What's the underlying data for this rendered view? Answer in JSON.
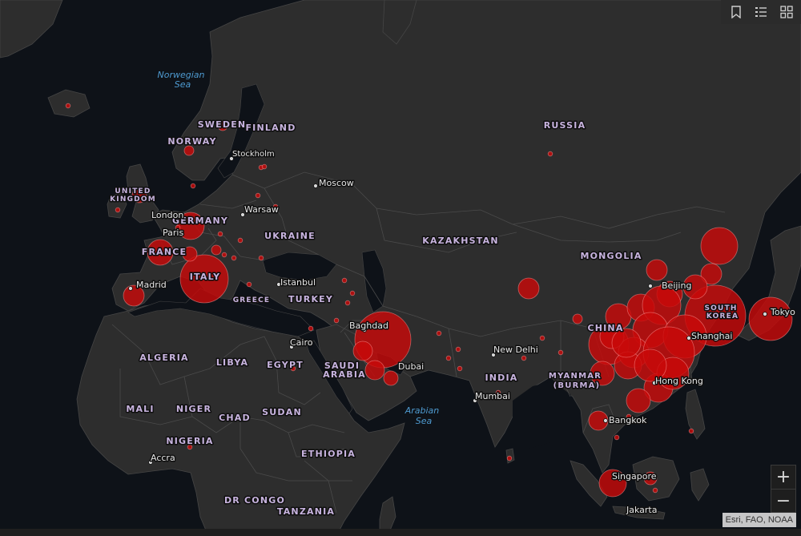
{
  "map": {
    "countries": [
      {
        "name": "RUSSIA"
      },
      {
        "name": "KAZAKHSTAN"
      },
      {
        "name": "MONGOLIA"
      },
      {
        "name": "UKRAINE"
      },
      {
        "name": "FINLAND"
      },
      {
        "name": "SWEDEN"
      },
      {
        "name": "NORWAY"
      },
      {
        "name": "UNITED"
      },
      {
        "name": "KINGDOM"
      },
      {
        "name": "GERMANY"
      },
      {
        "name": "FRANCE"
      },
      {
        "name": "ITALY"
      },
      {
        "name": "GREECE"
      },
      {
        "name": "TURKEY"
      },
      {
        "name": "ALGERIA"
      },
      {
        "name": "LIBYA"
      },
      {
        "name": "EGYPT"
      },
      {
        "name": "SAUDI"
      },
      {
        "name": "ARABIA"
      },
      {
        "name": "MALI"
      },
      {
        "name": "NIGER"
      },
      {
        "name": "CHAD"
      },
      {
        "name": "SUDAN"
      },
      {
        "name": "NIGERIA"
      },
      {
        "name": "ETHIOPIA"
      },
      {
        "name": "DR CONGO"
      },
      {
        "name": "TANZANIA"
      },
      {
        "name": "INDIA"
      },
      {
        "name": "MYANMAR"
      },
      {
        "name": "(BURMA)"
      },
      {
        "name": "CHINA"
      },
      {
        "name": "SOUTH"
      },
      {
        "name": "KOREA"
      }
    ],
    "seas": [
      {
        "name": "Norwegian"
      },
      {
        "name": "Sea"
      },
      {
        "name": "Arabian"
      },
      {
        "name": "Sea"
      }
    ],
    "cities": [
      {
        "name": "Stockholm"
      },
      {
        "name": "Moscow"
      },
      {
        "name": "London"
      },
      {
        "name": "Paris"
      },
      {
        "name": "Warsaw"
      },
      {
        "name": "Madrid"
      },
      {
        "name": "Istanbul"
      },
      {
        "name": "Baghdad"
      },
      {
        "name": "Cairo"
      },
      {
        "name": "Dubai"
      },
      {
        "name": "New Delhi"
      },
      {
        "name": "Mumbai"
      },
      {
        "name": "Beijing"
      },
      {
        "name": "Shanghai"
      },
      {
        "name": "Hong Kong"
      },
      {
        "name": "Tokyo"
      },
      {
        "name": "Bangkok"
      },
      {
        "name": "Singapore"
      },
      {
        "name": "Jakarta"
      },
      {
        "name": "Accra"
      }
    ]
  },
  "toolbar": {
    "bookmark_icon": "bookmark-icon",
    "legend_icon": "legend-list-icon",
    "basemap_icon": "basemap-gallery-icon"
  },
  "zoom": {
    "in_label": "+",
    "out_label": "−"
  },
  "attribution": "Esri, FAO, NOAA",
  "colors": {
    "water": "#0e1218",
    "land": "#2d2d2d",
    "border": "#4a4a4a",
    "bubble": "#c80a0a",
    "country_label": "#c7b3de",
    "sea_label": "#4e9ad0"
  }
}
